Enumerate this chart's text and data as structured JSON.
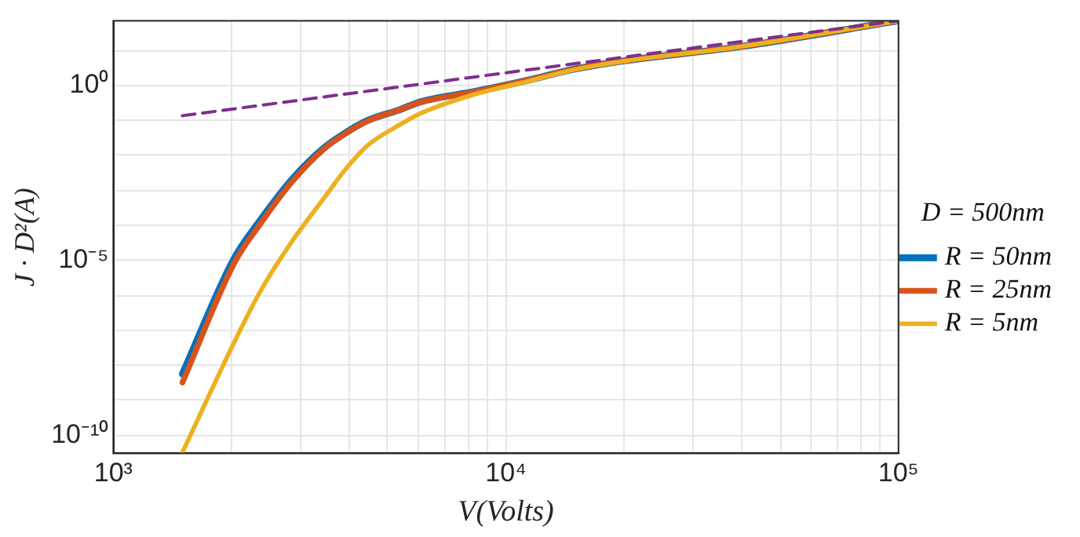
{
  "chart_data": {
    "type": "line",
    "xlabel": "V(Volts)",
    "ylabel": "J · D²(A)",
    "legend_title": "D = 500nm",
    "log": "xy",
    "grid": true,
    "legend": "right",
    "marker": "none",
    "xlim": [
      1000,
      100000
    ],
    "xticks": [
      {
        "value": 1000,
        "label": "10³"
      },
      {
        "value": 2000,
        "label": null
      },
      {
        "value": 3000,
        "label": null
      },
      {
        "value": 4000,
        "label": null
      },
      {
        "value": 5000,
        "label": null
      },
      {
        "value": 6000,
        "label": null
      },
      {
        "value": 7000,
        "label": null
      },
      {
        "value": 8000,
        "label": null
      },
      {
        "value": 9000,
        "label": null
      },
      {
        "value": 10000,
        "label": "10⁴"
      },
      {
        "value": 20000,
        "label": null
      },
      {
        "value": 30000,
        "label": null
      },
      {
        "value": 40000,
        "label": null
      },
      {
        "value": 50000,
        "label": null
      },
      {
        "value": 60000,
        "label": null
      },
      {
        "value": 70000,
        "label": null
      },
      {
        "value": 80000,
        "label": null
      },
      {
        "value": 90000,
        "label": null
      },
      {
        "value": 100000,
        "label": "10⁵"
      }
    ],
    "ylim": [
      3e-11,
      70
    ],
    "yticks": [
      {
        "value": 1e-10,
        "label": "10⁻¹⁰"
      },
      {
        "value": 1e-09,
        "label": null
      },
      {
        "value": 1e-08,
        "label": null
      },
      {
        "value": 1e-07,
        "label": null
      },
      {
        "value": 1e-06,
        "label": null
      },
      {
        "value": 1e-05,
        "label": "10⁻⁵"
      },
      {
        "value": 0.0001,
        "label": null
      },
      {
        "value": 0.001,
        "label": null
      },
      {
        "value": 0.01,
        "label": null
      },
      {
        "value": 0.1,
        "label": null
      },
      {
        "value": 1,
        "label": "10⁰"
      },
      {
        "value": 10,
        "label": null
      }
    ],
    "series": [
      {
        "name": "R = 50nm",
        "color": "#0072bd",
        "x": [
          1500,
          2030,
          2370,
          2860,
          3460,
          3920,
          4440,
          5360,
          6080,
          8320,
          11400,
          14700,
          20000,
          40000,
          100000
        ],
        "values": [
          5.6e-09,
          1.1e-05,
          0.00014,
          0.0021,
          0.017,
          0.045,
          0.098,
          0.2,
          0.34,
          0.66,
          1.4,
          2.8,
          5,
          13,
          70
        ]
      },
      {
        "name": "R = 25nm",
        "color": "#d95319",
        "x": [
          1500,
          2030,
          2370,
          2860,
          3460,
          3920,
          4440,
          5360,
          6080,
          8320,
          11400,
          14700,
          20000,
          40000,
          100000
        ],
        "values": [
          3.2e-09,
          8e-06,
          0.00011,
          0.0018,
          0.016,
          0.043,
          0.095,
          0.2,
          0.33,
          0.65,
          1.4,
          2.8,
          5,
          13,
          70
        ]
      },
      {
        "name": "R = 5nm",
        "color": "#edb120",
        "x": [
          1500,
          2030,
          2370,
          2860,
          3460,
          3920,
          4440,
          5360,
          6080,
          8320,
          11400,
          14700,
          20000,
          40000,
          100000
        ],
        "values": [
          3.2e-11,
          4.4e-08,
          1.3e-06,
          3.6e-05,
          0.00065,
          0.0042,
          0.019,
          0.074,
          0.16,
          0.55,
          1.3,
          2.7,
          4.9,
          13,
          70
        ]
      },
      {
        "color": "#7e2f8e",
        "line_style": "dashed",
        "x": [
          1500,
          100000
        ],
        "values": [
          0.135,
          70
        ]
      }
    ]
  }
}
